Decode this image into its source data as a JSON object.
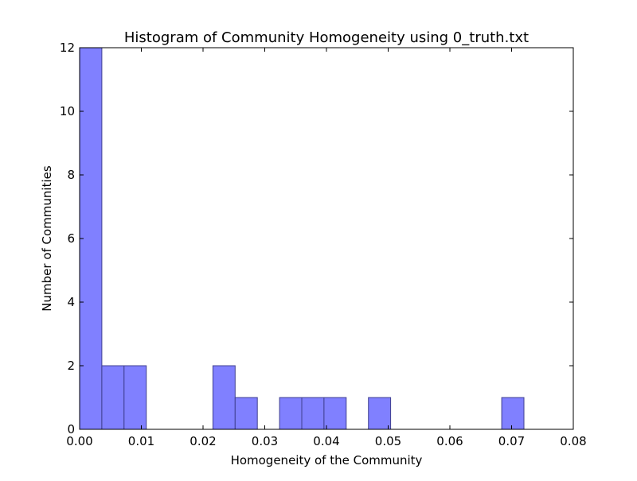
{
  "chart_data": {
    "type": "bar",
    "title": "Histogram of Community Homogeneity using 0_truth.txt",
    "xlabel": "Homogeneity of the Community",
    "ylabel": "Number of Communities",
    "xlim": [
      0.0,
      0.08
    ],
    "ylim": [
      0,
      12
    ],
    "xticks": [
      "0.00",
      "0.01",
      "0.02",
      "0.03",
      "0.04",
      "0.05",
      "0.06",
      "0.07",
      "0.08"
    ],
    "yticks": [
      "0",
      "2",
      "4",
      "6",
      "8",
      "10",
      "12"
    ],
    "bin_width": 0.0036,
    "bins": [
      {
        "start": 0.0,
        "count": 12
      },
      {
        "start": 0.0036,
        "count": 2
      },
      {
        "start": 0.0072,
        "count": 2
      },
      {
        "start": 0.0108,
        "count": 0
      },
      {
        "start": 0.0144,
        "count": 0
      },
      {
        "start": 0.018,
        "count": 0
      },
      {
        "start": 0.0216,
        "count": 2
      },
      {
        "start": 0.0252,
        "count": 1
      },
      {
        "start": 0.0288,
        "count": 0
      },
      {
        "start": 0.0324,
        "count": 1
      },
      {
        "start": 0.036,
        "count": 1
      },
      {
        "start": 0.0396,
        "count": 1
      },
      {
        "start": 0.0432,
        "count": 0
      },
      {
        "start": 0.0468,
        "count": 1
      },
      {
        "start": 0.0504,
        "count": 0
      },
      {
        "start": 0.054,
        "count": 0
      },
      {
        "start": 0.0576,
        "count": 0
      },
      {
        "start": 0.0612,
        "count": 0
      },
      {
        "start": 0.0648,
        "count": 0
      },
      {
        "start": 0.0684,
        "count": 1
      }
    ],
    "bar_color": "#8080ff",
    "bar_edge_color": "#404090",
    "grid": false,
    "legend": "none"
  }
}
